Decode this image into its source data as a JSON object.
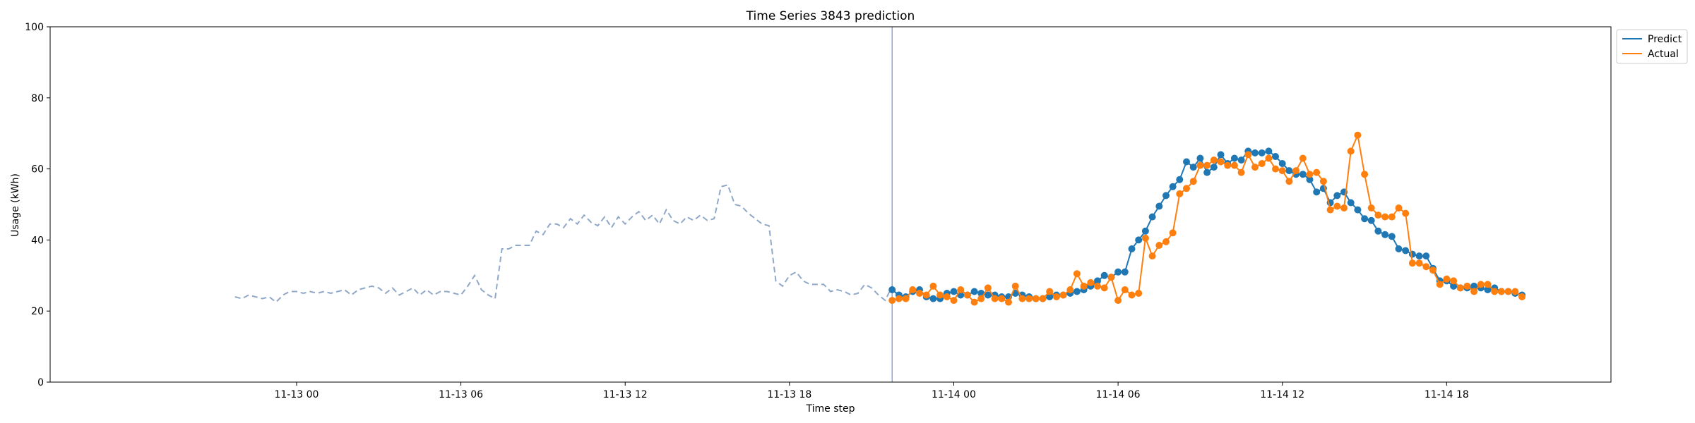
{
  "chart_data": {
    "type": "line",
    "title": "Time Series 3843 prediction",
    "xlabel": "Time step",
    "ylabel": "Usage (kWh)",
    "ylim": [
      0,
      100
    ],
    "yticks": [
      0,
      20,
      40,
      60,
      80,
      100
    ],
    "xlim": [
      "2024-11-12 15:00",
      "2024-11-15 00:00"
    ],
    "xticks": [
      {
        "t": "2024-11-13 00:00",
        "label": "11-13 00"
      },
      {
        "t": "2024-11-13 06:00",
        "label": "11-13 06"
      },
      {
        "t": "2024-11-13 12:00",
        "label": "11-13 12"
      },
      {
        "t": "2024-11-13 18:00",
        "label": "11-13 18"
      },
      {
        "t": "2024-11-14 00:00",
        "label": "11-14 00"
      },
      {
        "t": "2024-11-14 06:00",
        "label": "11-14 06"
      },
      {
        "t": "2024-11-14 12:00",
        "label": "11-14 12"
      },
      {
        "t": "2024-11-14 18:00",
        "label": "11-14 18"
      }
    ],
    "grid": false,
    "legend_position": "upper right, outside plot",
    "forecast_start": "2024-11-13 21:45",
    "history": {
      "start": "2024-11-12 21:45",
      "step_minutes": 15,
      "color": "#8fa8c8",
      "values": [
        24,
        23.5,
        24.5,
        24,
        23.5,
        24,
        22.5,
        24.5,
        25.5,
        25.5,
        25,
        25.5,
        25,
        25.5,
        25,
        25.5,
        26,
        24.5,
        26,
        26.5,
        27,
        26.5,
        25,
        26.5,
        24.5,
        25.5,
        26.5,
        24.5,
        26,
        24.5,
        25.5,
        25.5,
        25,
        24.5,
        27,
        30,
        26,
        24.5,
        23.5,
        37.5,
        37.5,
        38.5,
        38.5,
        38.5,
        42.5,
        41.5,
        44.5,
        44.5,
        43.5,
        46,
        44.5,
        47,
        45,
        44,
        46.5,
        43.5,
        46.5,
        44.5,
        46.5,
        48,
        45.5,
        47,
        44.5,
        48.5,
        45.5,
        44.5,
        46.5,
        45.5,
        47,
        45.5,
        46,
        55,
        55.5,
        50,
        49.5,
        47.5,
        46,
        44.5,
        44,
        28.5,
        27,
        30,
        31,
        28.5,
        27.5,
        27.5,
        27.5,
        25.5,
        26,
        25.5,
        24.5,
        25,
        27.5,
        26.5,
        24.5,
        23,
        27,
        23.5,
        23.5
      ]
    },
    "series": [
      {
        "name": "Predict",
        "color": "#1f77b4",
        "start": "2024-11-13 21:45",
        "step_minutes": 15,
        "values": [
          26,
          24.5,
          24,
          25.5,
          26,
          24,
          23.5,
          23.5,
          25,
          25.5,
          24.5,
          24.5,
          25.5,
          25,
          24.5,
          24.5,
          24,
          24,
          25,
          24.5,
          24,
          23.5,
          23.5,
          24,
          24.5,
          24.5,
          25,
          25.5,
          26,
          27,
          28.5,
          30,
          29.5,
          31,
          31,
          37.5,
          40,
          42.5,
          46.5,
          49.5,
          52.5,
          55,
          57,
          62,
          60.5,
          63,
          59,
          60.5,
          64,
          61.5,
          63,
          62.5,
          65,
          64.5,
          64.5,
          65,
          63.5,
          61.5,
          59.5,
          58.5,
          58.5,
          57,
          53.5,
          54.5,
          50.5,
          52.5,
          53.5,
          50.5,
          48.5,
          46,
          45.5,
          42.5,
          41.5,
          41,
          37.5,
          37,
          36,
          35.5,
          35.5,
          32,
          28.5,
          28.5,
          27,
          26.5,
          26.5,
          27,
          26.5,
          26,
          26.5,
          25.5,
          25.5,
          25,
          24.5
        ]
      },
      {
        "name": "Actual",
        "color": "#ff7f0e",
        "start": "2024-11-13 21:45",
        "step_minutes": 15,
        "values": [
          23,
          23.5,
          23.5,
          26,
          25,
          24.5,
          27,
          24.5,
          24,
          23,
          26,
          24.5,
          22.5,
          23.5,
          26.5,
          23.5,
          23.5,
          22.5,
          27,
          23.5,
          23.5,
          23.5,
          23.5,
          25.5,
          24,
          24.5,
          26,
          30.5,
          27,
          28,
          27,
          26.5,
          29.5,
          23,
          26,
          24.5,
          25,
          40.5,
          35.5,
          38.5,
          39.5,
          42,
          53,
          54.5,
          56.5,
          61,
          61,
          62.5,
          62,
          61,
          61,
          59,
          64,
          60.5,
          61.5,
          63,
          60,
          59.5,
          56.5,
          59.5,
          63,
          58.5,
          59,
          56.5,
          48.5,
          49.5,
          49,
          65,
          69.5,
          58.5,
          49,
          47,
          46.5,
          46.5,
          49,
          47.5,
          33.5,
          33.5,
          32.5,
          31.5,
          27.5,
          29,
          28.5,
          26.5,
          27,
          25.5,
          27.5,
          27.5,
          25.5,
          25.5,
          25.5,
          25.5,
          24
        ]
      }
    ]
  }
}
